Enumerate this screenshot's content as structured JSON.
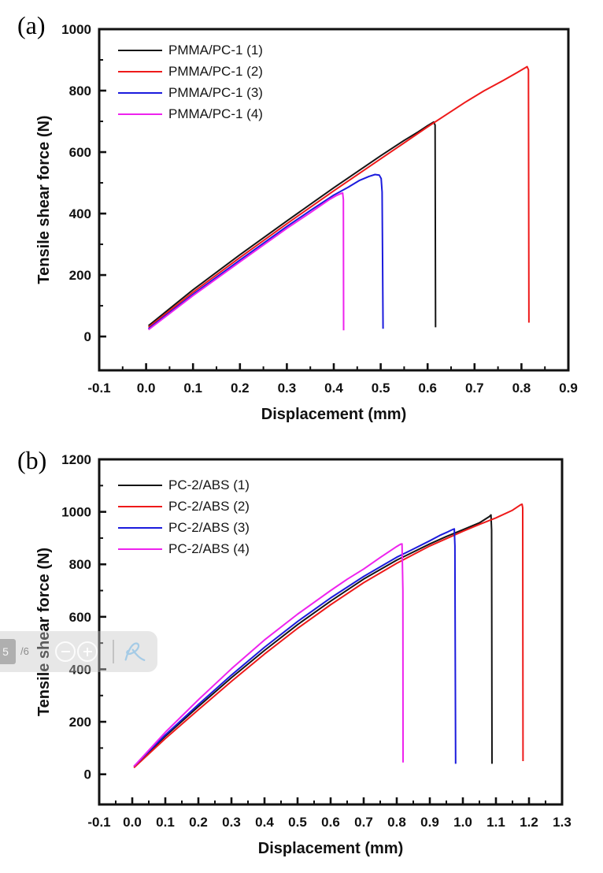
{
  "pdf_toolbar": {
    "page_number": "5",
    "page_total": "/6"
  },
  "chart_data": [
    {
      "type": "line",
      "panel_label": "(a)",
      "xlabel": "Displacement (mm)",
      "ylabel": "Tensile shear force (N)",
      "xlim": [
        -0.1,
        0.9
      ],
      "ylim": [
        0,
        1000
      ],
      "ylim_draw": [
        -110,
        1000
      ],
      "grid": false,
      "legend_position": "top-left-inside",
      "x_tick_values": [
        -0.1,
        0.0,
        0.1,
        0.2,
        0.3,
        0.4,
        0.5,
        0.6,
        0.7,
        0.8,
        0.9
      ],
      "x_tick_labels": [
        "-0.1",
        "0.0",
        "0.1",
        "0.2",
        "0.3",
        "0.4",
        "0.5",
        "0.6",
        "0.7",
        "0.8",
        "0.9"
      ],
      "y_tick_values": [
        0,
        200,
        400,
        600,
        800,
        1000
      ],
      "y_tick_labels": [
        "0",
        "200",
        "400",
        "600",
        "800",
        "1000"
      ],
      "x_minor_step": 0.05,
      "y_minor_step": 100,
      "series": [
        {
          "name": "PMMA/PC-1 (1)",
          "color": "#151515",
          "peak_force_N": 700,
          "failure_displacement_mm": 0.61,
          "points": [
            [
              0.005,
              35
            ],
            [
              0.1,
              152
            ],
            [
              0.2,
              266
            ],
            [
              0.3,
              376
            ],
            [
              0.4,
              484
            ],
            [
              0.5,
              588
            ],
            [
              0.55,
              638
            ],
            [
              0.58,
              666
            ],
            [
              0.6,
              686
            ],
            [
              0.613,
              698
            ],
            [
              0.616,
              688
            ],
            [
              0.617,
              30
            ]
          ]
        },
        {
          "name": "PMMA/PC-1 (2)",
          "color": "#ee1a1a",
          "peak_force_N": 880,
          "failure_displacement_mm": 0.81,
          "points": [
            [
              0.005,
              30
            ],
            [
              0.1,
              144
            ],
            [
              0.2,
              257
            ],
            [
              0.3,
              367
            ],
            [
              0.4,
              474
            ],
            [
              0.5,
              578
            ],
            [
              0.6,
              682
            ],
            [
              0.64,
              722
            ],
            [
              0.68,
              762
            ],
            [
              0.72,
              799
            ],
            [
              0.76,
              832
            ],
            [
              0.79,
              858
            ],
            [
              0.812,
              878
            ],
            [
              0.815,
              868
            ],
            [
              0.816,
              45
            ]
          ]
        },
        {
          "name": "PMMA/PC-1 (3)",
          "color": "#1b1bdd",
          "peak_force_N": 527,
          "failure_displacement_mm": 0.5,
          "points": [
            [
              0.005,
              25
            ],
            [
              0.1,
              137
            ],
            [
              0.2,
              249
            ],
            [
              0.3,
              358
            ],
            [
              0.35,
              410
            ],
            [
              0.4,
              460
            ],
            [
              0.43,
              485
            ],
            [
              0.455,
              508
            ],
            [
              0.475,
              521
            ],
            [
              0.488,
              527
            ],
            [
              0.497,
              525
            ],
            [
              0.501,
              514
            ],
            [
              0.503,
              470
            ],
            [
              0.505,
              25
            ]
          ]
        },
        {
          "name": "PMMA/PC-1 (4)",
          "color": "#ee22ee",
          "peak_force_N": 467,
          "failure_displacement_mm": 0.42,
          "points": [
            [
              0.005,
              22
            ],
            [
              0.1,
              133
            ],
            [
              0.2,
              243
            ],
            [
              0.3,
              352
            ],
            [
              0.35,
              403
            ],
            [
              0.39,
              445
            ],
            [
              0.405,
              458
            ],
            [
              0.415,
              465
            ],
            [
              0.419,
              467
            ],
            [
              0.4205,
              445
            ],
            [
              0.421,
              20
            ]
          ]
        }
      ]
    },
    {
      "type": "line",
      "panel_label": "(b)",
      "xlabel": "Displacement (mm)",
      "ylabel": "Tensile shear force (N)",
      "xlim": [
        -0.1,
        1.3
      ],
      "ylim": [
        0,
        1200
      ],
      "ylim_draw": [
        -115,
        1200
      ],
      "grid": false,
      "legend_position": "top-left-inside",
      "x_tick_values": [
        -0.1,
        0.0,
        0.1,
        0.2,
        0.3,
        0.4,
        0.5,
        0.6,
        0.7,
        0.8,
        0.9,
        1.0,
        1.1,
        1.2,
        1.3
      ],
      "x_tick_labels": [
        "-0.1",
        "0.0",
        "0.1",
        "0.2",
        "0.3",
        "0.4",
        "0.5",
        "0.6",
        "0.7",
        "0.8",
        "0.9",
        "1.0",
        "1.1",
        "1.2",
        "1.3"
      ],
      "y_tick_values": [
        0,
        200,
        400,
        600,
        800,
        1000,
        1200
      ],
      "y_tick_labels": [
        "0",
        "200",
        "400",
        "600",
        "800",
        "1000",
        "1200"
      ],
      "x_minor_step": 0.05,
      "y_minor_step": 100,
      "series": [
        {
          "name": "PC-2/ABS (1)",
          "color": "#151515",
          "peak_force_N": 990,
          "failure_displacement_mm": 1.08,
          "points": [
            [
              0.005,
              30
            ],
            [
              0.1,
              145
            ],
            [
              0.2,
              258
            ],
            [
              0.3,
              368
            ],
            [
              0.4,
              472
            ],
            [
              0.5,
              570
            ],
            [
              0.6,
              660
            ],
            [
              0.7,
              744
            ],
            [
              0.8,
              816
            ],
            [
              0.9,
              878
            ],
            [
              0.95,
              906
            ],
            [
              1.0,
              932
            ],
            [
              1.05,
              958
            ],
            [
              1.08,
              982
            ],
            [
              1.085,
              988
            ],
            [
              1.087,
              930
            ],
            [
              1.088,
              40
            ]
          ]
        },
        {
          "name": "PC-2/ABS (2)",
          "color": "#ee1a1a",
          "peak_force_N": 1030,
          "failure_displacement_mm": 1.18,
          "points": [
            [
              0.005,
              25
            ],
            [
              0.1,
              136
            ],
            [
              0.2,
              246
            ],
            [
              0.3,
              354
            ],
            [
              0.4,
              458
            ],
            [
              0.5,
              556
            ],
            [
              0.6,
              646
            ],
            [
              0.7,
              730
            ],
            [
              0.8,
              804
            ],
            [
              0.9,
              870
            ],
            [
              1.0,
              926
            ],
            [
              1.05,
              952
            ],
            [
              1.1,
              977
            ],
            [
              1.15,
              1006
            ],
            [
              1.175,
              1027
            ],
            [
              1.179,
              1029
            ],
            [
              1.181,
              1015
            ],
            [
              1.182,
              50
            ]
          ]
        },
        {
          "name": "PC-2/ABS (3)",
          "color": "#1b1bdd",
          "peak_force_N": 935,
          "failure_displacement_mm": 0.97,
          "points": [
            [
              0.005,
              30
            ],
            [
              0.1,
              150
            ],
            [
              0.2,
              266
            ],
            [
              0.3,
              378
            ],
            [
              0.4,
              484
            ],
            [
              0.5,
              582
            ],
            [
              0.6,
              672
            ],
            [
              0.7,
              754
            ],
            [
              0.8,
              827
            ],
            [
              0.85,
              858
            ],
            [
              0.9,
              890
            ],
            [
              0.93,
              910
            ],
            [
              0.955,
              924
            ],
            [
              0.97,
              933
            ],
            [
              0.974,
              935
            ],
            [
              0.976,
              870
            ],
            [
              0.9765,
              640
            ],
            [
              0.978,
              40
            ]
          ]
        },
        {
          "name": "PC-2/ABS (4)",
          "color": "#ee22ee",
          "peak_force_N": 878,
          "failure_displacement_mm": 0.82,
          "points": [
            [
              0.005,
              30
            ],
            [
              0.1,
              160
            ],
            [
              0.2,
              284
            ],
            [
              0.3,
              402
            ],
            [
              0.4,
              512
            ],
            [
              0.5,
              610
            ],
            [
              0.6,
              700
            ],
            [
              0.65,
              743
            ],
            [
              0.7,
              782
            ],
            [
              0.75,
              826
            ],
            [
              0.78,
              851
            ],
            [
              0.8,
              868
            ],
            [
              0.812,
              877
            ],
            [
              0.816,
              878
            ],
            [
              0.8185,
              700
            ],
            [
              0.819,
              45
            ]
          ]
        }
      ]
    }
  ]
}
